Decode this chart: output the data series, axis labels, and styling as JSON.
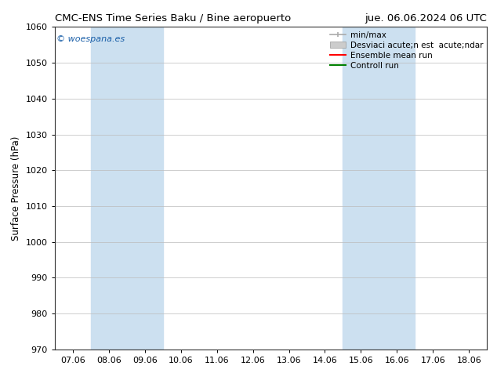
{
  "title_left": "CMC-ENS Time Series Baku / Bine aeropuerto",
  "title_right": "jue. 06.06.2024 06 UTC",
  "ylabel": "Surface Pressure (hPa)",
  "ylim": [
    970,
    1060
  ],
  "yticks": [
    970,
    980,
    990,
    1000,
    1010,
    1020,
    1030,
    1040,
    1050,
    1060
  ],
  "xtick_labels": [
    "07.06",
    "08.06",
    "09.06",
    "10.06",
    "11.06",
    "12.06",
    "13.06",
    "14.06",
    "15.06",
    "16.06",
    "17.06",
    "18.06"
  ],
  "watermark": "© woespana.es",
  "legend_entries": [
    "min/max",
    "Desviaci acute;n est  acute;ndar",
    "Ensemble mean run",
    "Controll run"
  ],
  "shaded_regions": [
    {
      "xstart": 1,
      "xend": 3,
      "color": "#cce0f0"
    },
    {
      "xstart": 8,
      "xend": 10,
      "color": "#cce0f0"
    }
  ],
  "bg_color": "#ffffff",
  "plot_bg_color": "#ffffff",
  "ensemble_mean_color": "#ff0000",
  "control_run_color": "#008000",
  "minmax_line_color": "#aaaaaa",
  "std_fill_color": "#cccccc",
  "title_fontsize": 9.5,
  "axis_label_fontsize": 8.5,
  "tick_fontsize": 8,
  "legend_fontsize": 7.5,
  "watermark_color": "#1a5fa8",
  "watermark_fontsize": 8
}
